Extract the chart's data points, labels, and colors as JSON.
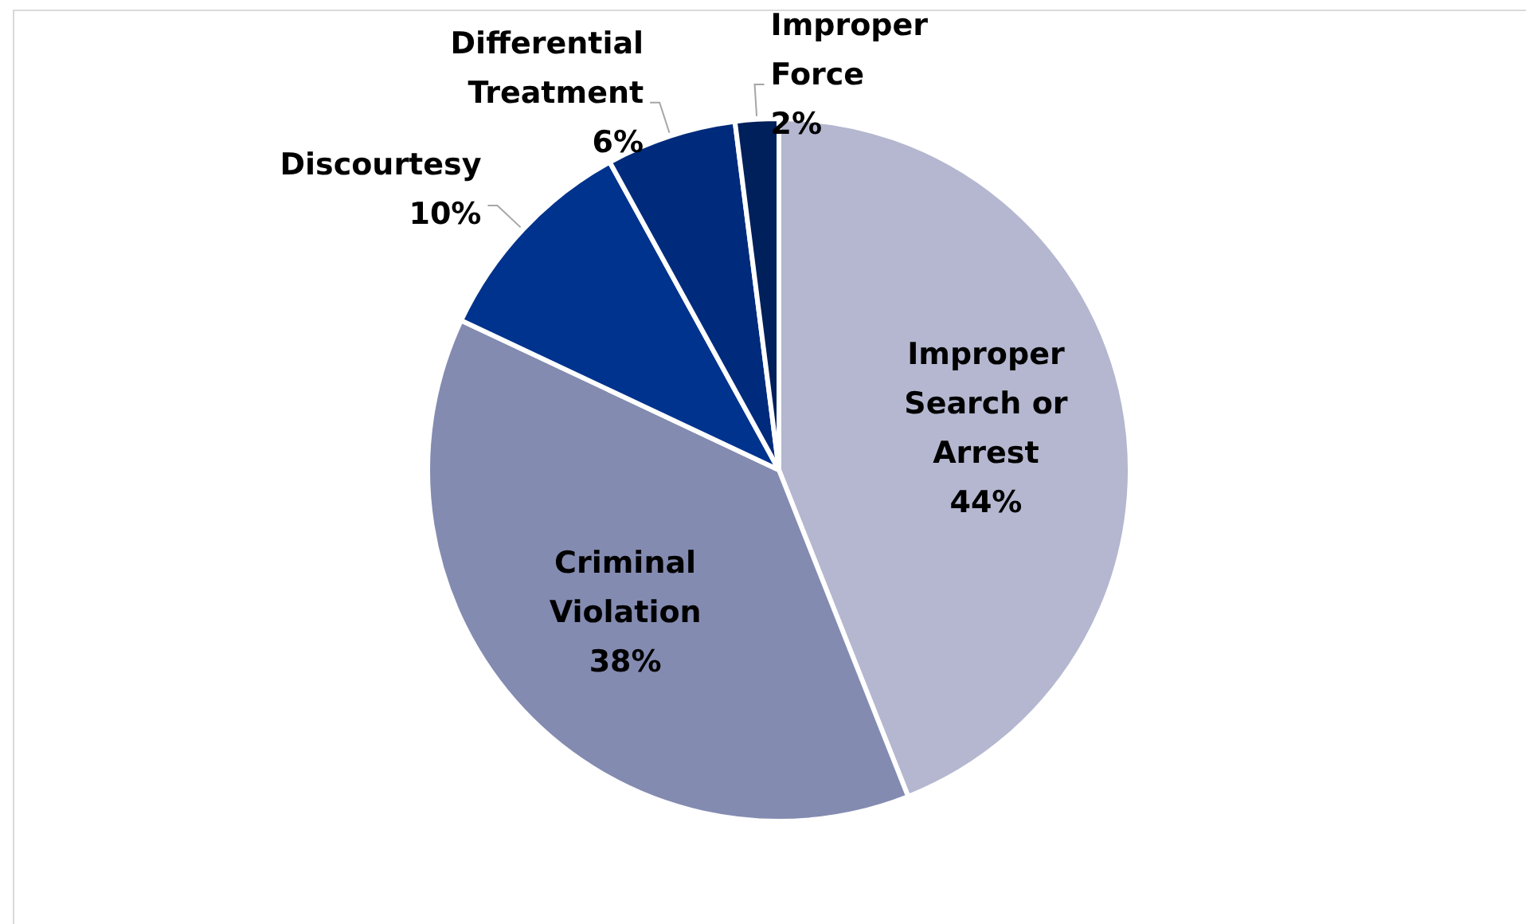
{
  "chart_data": {
    "type": "pie",
    "categories": [
      "Improper Search or Arrest",
      "Criminal Violation",
      "Discourtesy",
      "Differential Treatment",
      "Improper Force"
    ],
    "values": [
      44,
      38,
      10,
      6,
      2
    ],
    "colors": [
      "#b4b7cf",
      "#848bb1",
      "#00338d",
      "#002b7c",
      "#00205b"
    ],
    "value_labels": [
      "44%",
      "38%",
      "10%",
      "6%",
      "2%"
    ],
    "legend": false
  }
}
